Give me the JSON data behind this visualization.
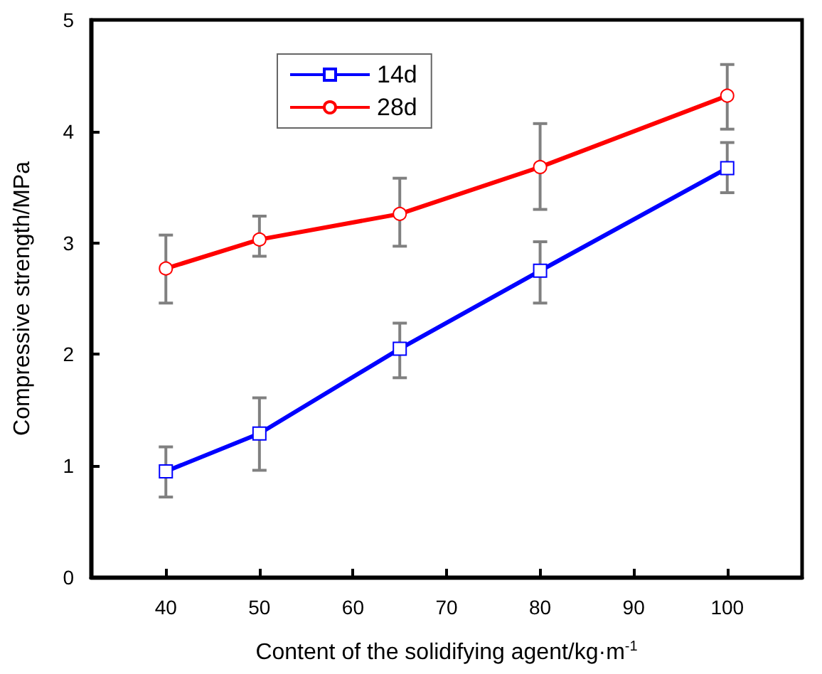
{
  "chart_data": {
    "type": "line",
    "xlabel": "Content of the solidifying agent/kg·m$^{-1}$",
    "ylabel": "Compressive strength/MPa",
    "x": [
      40,
      50,
      65,
      80,
      100
    ],
    "series": [
      {
        "name": "14d",
        "color": "#0000ff",
        "marker": "square",
        "values": [
          0.95,
          1.29,
          2.05,
          2.75,
          3.67
        ],
        "errors": [
          [
            0.72,
            1.17
          ],
          [
            0.96,
            1.61
          ],
          [
            1.79,
            2.28
          ],
          [
            2.46,
            3.01
          ],
          [
            3.45,
            3.9
          ]
        ]
      },
      {
        "name": "28d",
        "color": "#ff0000",
        "marker": "circle",
        "values": [
          2.77,
          3.03,
          3.26,
          3.68,
          4.32
        ],
        "errors": [
          [
            2.46,
            3.07
          ],
          [
            2.88,
            3.24
          ],
          [
            2.97,
            3.58
          ],
          [
            3.3,
            4.07
          ],
          [
            4.02,
            4.6
          ]
        ]
      }
    ],
    "xlim": [
      32,
      108
    ],
    "xticks": [
      40,
      50,
      60,
      70,
      80,
      90,
      100
    ],
    "ylim": [
      0,
      5
    ],
    "yticks": [
      0,
      1,
      2,
      3,
      4,
      5
    ],
    "grid": false,
    "legend": "top left",
    "line_style": "solid"
  }
}
